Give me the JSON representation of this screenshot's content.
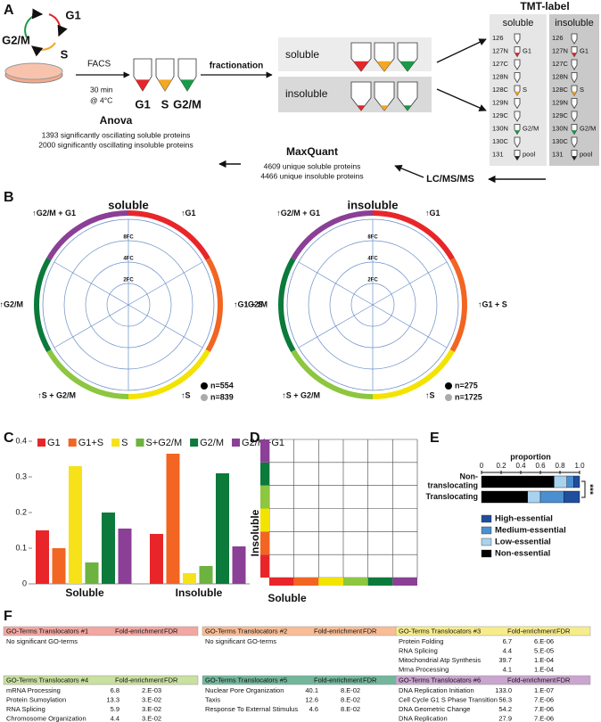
{
  "panel_labels": [
    "A",
    "B",
    "C",
    "D",
    "E",
    "F"
  ],
  "panel_a": {
    "cell_cycle": [
      {
        "text": "G1",
        "color": "#e3262b"
      },
      {
        "text": "G2/M",
        "color": "#1a9a48"
      },
      {
        "text": "S",
        "color": "#f5a623"
      }
    ],
    "facs": "FACS",
    "facs_note": [
      "30 min",
      "@ 4°C"
    ],
    "tubes": [
      {
        "text": "G1",
        "color": "#e3262b"
      },
      {
        "text": "S",
        "color": "#f5a623"
      },
      {
        "text": "G2/M",
        "color": "#1a9a48"
      }
    ],
    "fractionation": "fractionation",
    "fractions": [
      "soluble",
      "insoluble"
    ],
    "tmt": {
      "title": "TMT-label",
      "columns": [
        "soluble",
        "insoluble"
      ],
      "channels": [
        {
          "name": "126"
        },
        {
          "name": "127N",
          "tag": "G1",
          "color": "#e3262b"
        },
        {
          "name": "127C"
        },
        {
          "name": "128N"
        },
        {
          "name": "128C",
          "tag": "S",
          "color": "#f5a623"
        },
        {
          "name": "129N"
        },
        {
          "name": "129C"
        },
        {
          "name": "130N",
          "tag": "G2/M",
          "color": "#1a9a48"
        },
        {
          "name": "130C"
        },
        {
          "name": "131",
          "tag": "pool",
          "color": "#222222"
        }
      ]
    },
    "lcms": "LC/MS/MS",
    "maxquant": {
      "title": "MaxQuant",
      "lines": [
        "4609 unique soluble proteins",
        "4466 unique insoluble proteins"
      ]
    },
    "anova": {
      "title": "Anova",
      "lines": [
        "1393 significantly oscillating soluble proteins",
        "2000 significantly oscillating insoluble proteins"
      ]
    }
  },
  "panel_b": {
    "sectors": [
      {
        "label": "↑G1",
        "color": "#e8262a"
      },
      {
        "label": "↑G1 + S",
        "color": "#f26522"
      },
      {
        "label": "↑S",
        "color": "#f2e300"
      },
      {
        "label": "↑S + G2/M",
        "color": "#8dc63f"
      },
      {
        "label": "↑G2/M",
        "color": "#0b7a3b"
      },
      {
        "label": "↑G2/M + G1",
        "color": "#8b3f96"
      }
    ],
    "rings": [
      "2FC",
      "4FC",
      "8FC"
    ],
    "plots": [
      {
        "title": "soluble",
        "legend": [
          "n=554",
          "n=839"
        ]
      },
      {
        "title": "insoluble",
        "legend": [
          "n=275",
          "n=1725"
        ]
      }
    ]
  },
  "chart_data": [
    {
      "type": "bar",
      "categories": [
        "Soluble",
        "Insoluble"
      ],
      "series": [
        {
          "name": "G1",
          "color": "#e8262a",
          "values": [
            0.15,
            0.14
          ]
        },
        {
          "name": "G1+S",
          "color": "#f26522",
          "values": [
            0.1,
            0.365
          ]
        },
        {
          "name": "S",
          "color": "#f7e21a",
          "values": [
            0.33,
            0.03
          ]
        },
        {
          "name": "S+G2/M",
          "color": "#6cb33f",
          "values": [
            0.06,
            0.05
          ]
        },
        {
          "name": "G2/M",
          "color": "#0b7a3b",
          "values": [
            0.2,
            0.31
          ]
        },
        {
          "name": "G2/M+G1",
          "color": "#8b3f96",
          "values": [
            0.155,
            0.105
          ]
        }
      ],
      "ylim": [
        0,
        0.4
      ],
      "yticks": [
        0,
        0.1,
        0.2,
        0.3,
        0.4
      ]
    },
    {
      "type": "stacked_barh",
      "xlabel": "proportion",
      "categories": [
        "Non-\ntranslocating",
        "Translocating"
      ],
      "series": [
        {
          "name": "Non-essential",
          "color": "#000000",
          "values": [
            0.74,
            0.47
          ]
        },
        {
          "name": "Low-essential",
          "color": "#a9d2ee",
          "values": [
            0.13,
            0.13
          ]
        },
        {
          "name": "Medium-essential",
          "color": "#4a90d0",
          "values": [
            0.07,
            0.24
          ]
        },
        {
          "name": "High-essential",
          "color": "#1f4e9e",
          "values": [
            0.06,
            0.16
          ]
        }
      ],
      "xlim": [
        0,
        1
      ],
      "xticks": [
        0,
        0.2,
        0.4,
        0.6,
        0.8,
        {
          "value": 1,
          "label": "1.0"
        }
      ],
      "annotation": "***"
    }
  ],
  "panel_d": {
    "xlabel": "Soluble",
    "ylabel": "Insoluble"
  },
  "panel_f": {
    "tables": [
      {
        "title": "GO-Terms Translocators #1",
        "columns": [
          "Fold-enrichment",
          "FDR"
        ],
        "color": "#f2a7a2",
        "note": "No significant GO-terms"
      },
      {
        "title": "GO-Terms Translocators #2",
        "columns": [
          "Fold-enrichment",
          "FDR"
        ],
        "color": "#f8bd96",
        "note": "No significant GO-terms"
      },
      {
        "title": "GO-Terms Translocators #3",
        "columns": [
          "Fold-enrichment",
          "FDR"
        ],
        "color": "#f7ec8c",
        "rows": [
          [
            "Protein Folding",
            "6.7",
            "6.E-06"
          ],
          [
            "RNA Splicing",
            "4.4",
            "5.E-05"
          ],
          [
            "Mitochondrial Atp Synthesis",
            "39.7",
            "1.E-04"
          ],
          [
            "Mrna Processing",
            "4.1",
            "1.E-04"
          ]
        ]
      },
      {
        "title": "GO-Terms Translocators #4",
        "columns": [
          "Fold-enrichment",
          "FDR"
        ],
        "color": "#c8e0a0",
        "rows": [
          [
            "mRNA Processing",
            "6.8",
            "2.E-03"
          ],
          [
            "Protein Sumoylation",
            "13.3",
            "3.E-02"
          ],
          [
            "RNA Splicing",
            "5.9",
            "3.E-02"
          ],
          [
            "Chromosome Organization",
            "4.4",
            "3.E-02"
          ]
        ]
      },
      {
        "title": "GO-Terms Translocators #5",
        "columns": [
          "Fold-enrichment",
          "FDR"
        ],
        "color": "#72b69c",
        "rows": [
          [
            "Nuclear Pore Organization",
            "40.1",
            "8.E-02"
          ],
          [
            "Taxis",
            "12.6",
            "8.E-02"
          ],
          [
            "Response To External Stimulus",
            "4.6",
            "8.E-02"
          ]
        ]
      },
      {
        "title": "GO-Terms Translocators #6",
        "columns": [
          "Fold-enrichment",
          "FDR"
        ],
        "color": "#c9a5cf",
        "rows": [
          [
            "DNA Replication Initiation",
            "133.0",
            "1.E-07"
          ],
          [
            "Cell Cycle G1 S Phase Transition",
            "56.3",
            "7.E-06"
          ],
          [
            "DNA Geometric Change",
            "54.2",
            "7.E-06"
          ],
          [
            "DNA Replication",
            "27.9",
            "7.E-06"
          ]
        ]
      }
    ]
  }
}
